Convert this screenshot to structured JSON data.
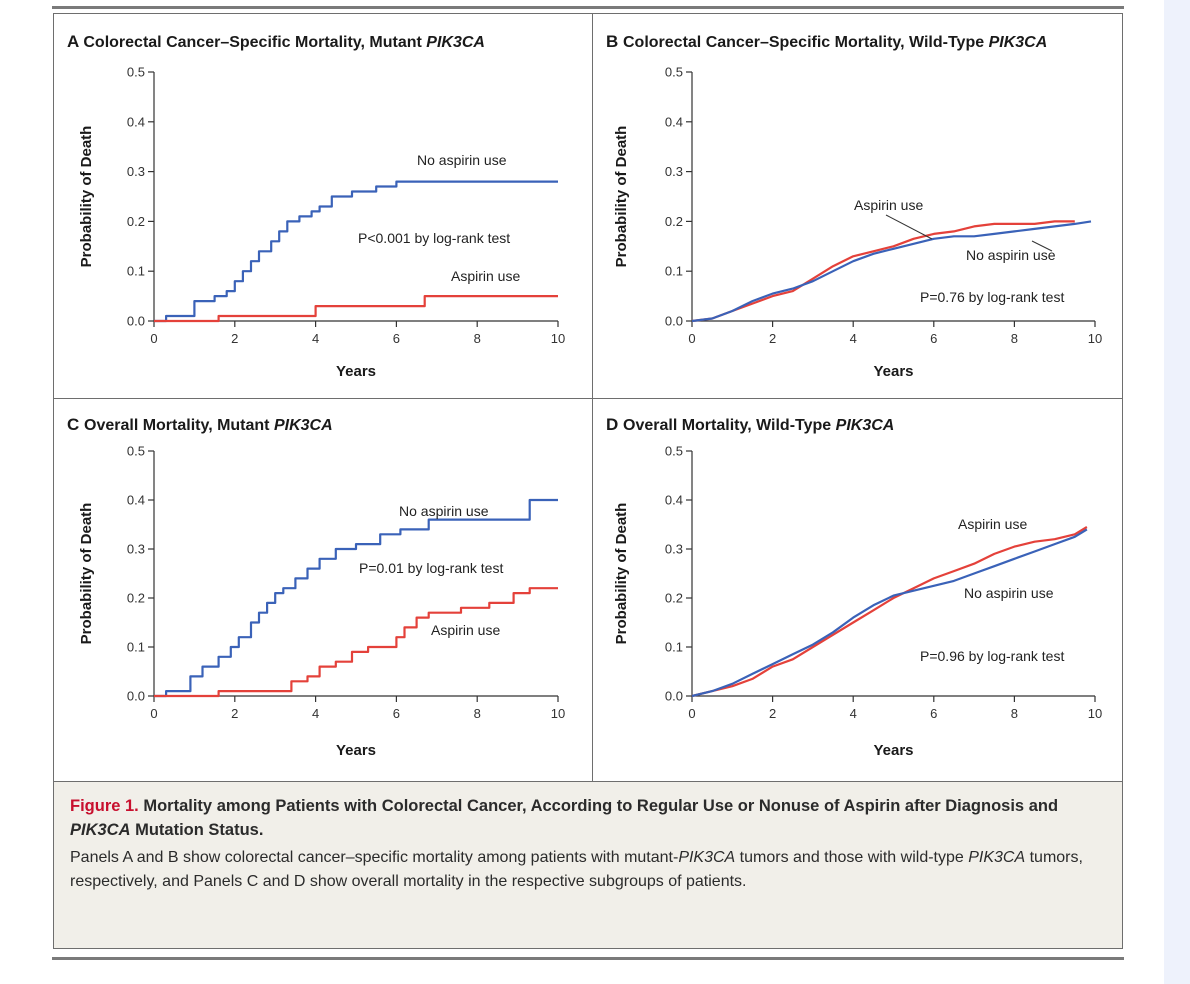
{
  "chart_data": [
    {
      "panel": "A",
      "type": "line",
      "title": "Colorectal Cancer–Specific Mortality, Mutant ",
      "title_italic": "PIK3CA",
      "xlabel": "Years",
      "ylabel": "Probability of Death",
      "xlim": [
        0,
        10
      ],
      "ylim": [
        0,
        0.5
      ],
      "xticks": [
        "0",
        "2",
        "4",
        "6",
        "8",
        "10"
      ],
      "yticks": [
        "0.0",
        "0.1",
        "0.2",
        "0.3",
        "0.4",
        "0.5"
      ],
      "pvalue": "P<0.001 by log-rank test",
      "series": [
        {
          "name": "No aspirin use",
          "color": "#3a62b8",
          "x": [
            0,
            0.3,
            0.3,
            1.0,
            1.0,
            1.5,
            1.5,
            1.8,
            1.8,
            2.0,
            2.0,
            2.2,
            2.2,
            2.4,
            2.4,
            2.6,
            2.6,
            2.9,
            2.9,
            3.1,
            3.1,
            3.3,
            3.3,
            3.6,
            3.6,
            3.9,
            3.9,
            4.1,
            4.1,
            4.4,
            4.4,
            4.9,
            4.9,
            5.5,
            5.5,
            6.0,
            6.0,
            10.0
          ],
          "values": [
            0.0,
            0.0,
            0.01,
            0.01,
            0.04,
            0.04,
            0.05,
            0.05,
            0.06,
            0.06,
            0.08,
            0.08,
            0.1,
            0.1,
            0.12,
            0.12,
            0.14,
            0.14,
            0.16,
            0.16,
            0.18,
            0.18,
            0.2,
            0.2,
            0.21,
            0.21,
            0.22,
            0.22,
            0.23,
            0.23,
            0.25,
            0.25,
            0.26,
            0.26,
            0.27,
            0.27,
            0.28,
            0.28
          ]
        },
        {
          "name": "Aspirin use",
          "color": "#e4413a",
          "x": [
            0,
            1.6,
            1.6,
            4.0,
            4.0,
            6.7,
            6.7,
            10.0
          ],
          "values": [
            0.0,
            0.0,
            0.01,
            0.01,
            0.03,
            0.03,
            0.05,
            0.05
          ]
        }
      ]
    },
    {
      "panel": "B",
      "type": "line",
      "title": "Colorectal Cancer–Specific Mortality, Wild-Type ",
      "title_italic": "PIK3CA",
      "xlabel": "Years",
      "ylabel": "Probability of Death",
      "xlim": [
        0,
        10
      ],
      "ylim": [
        0,
        0.5
      ],
      "xticks": [
        "0",
        "2",
        "4",
        "6",
        "8",
        "10"
      ],
      "yticks": [
        "0.0",
        "0.1",
        "0.2",
        "0.3",
        "0.4",
        "0.5"
      ],
      "pvalue": "P=0.76 by log-rank test",
      "series": [
        {
          "name": "Aspirin use",
          "color": "#e4413a",
          "x": [
            0,
            0.5,
            1.0,
            1.5,
            2.0,
            2.5,
            3.0,
            3.5,
            4.0,
            4.5,
            5.0,
            5.5,
            6.0,
            6.5,
            7.0,
            7.5,
            8.0,
            8.5,
            9.0,
            9.5
          ],
          "values": [
            0.0,
            0.005,
            0.02,
            0.035,
            0.05,
            0.06,
            0.085,
            0.11,
            0.13,
            0.14,
            0.15,
            0.165,
            0.175,
            0.18,
            0.19,
            0.195,
            0.195,
            0.195,
            0.2,
            0.2
          ]
        },
        {
          "name": "No aspirin use",
          "color": "#3a62b8",
          "x": [
            0,
            0.5,
            1.0,
            1.5,
            2.0,
            2.5,
            3.0,
            3.5,
            4.0,
            4.5,
            5.0,
            5.5,
            6.0,
            6.5,
            7.0,
            7.5,
            8.0,
            8.5,
            9.0,
            9.5,
            9.9
          ],
          "values": [
            0.0,
            0.005,
            0.02,
            0.04,
            0.055,
            0.065,
            0.08,
            0.1,
            0.12,
            0.135,
            0.145,
            0.155,
            0.165,
            0.17,
            0.17,
            0.175,
            0.18,
            0.185,
            0.19,
            0.195,
            0.2
          ]
        }
      ]
    },
    {
      "panel": "C",
      "type": "line",
      "title": "Overall Mortality, Mutant ",
      "title_italic": "PIK3CA",
      "xlabel": "Years",
      "ylabel": "Probability of Death",
      "xlim": [
        0,
        10
      ],
      "ylim": [
        0,
        0.5
      ],
      "xticks": [
        "0",
        "2",
        "4",
        "6",
        "8",
        "10"
      ],
      "yticks": [
        "0.0",
        "0.1",
        "0.2",
        "0.3",
        "0.4",
        "0.5"
      ],
      "pvalue": "P=0.01 by log-rank test",
      "series": [
        {
          "name": "No aspirin use",
          "color": "#3a62b8",
          "x": [
            0,
            0.3,
            0.3,
            0.9,
            0.9,
            1.2,
            1.2,
            1.6,
            1.6,
            1.9,
            1.9,
            2.1,
            2.1,
            2.4,
            2.4,
            2.6,
            2.6,
            2.8,
            2.8,
            3.0,
            3.0,
            3.2,
            3.2,
            3.5,
            3.5,
            3.8,
            3.8,
            4.1,
            4.1,
            4.5,
            4.5,
            5.0,
            5.0,
            5.6,
            5.6,
            6.1,
            6.1,
            6.8,
            6.8,
            9.3,
            9.3,
            9.5,
            9.5,
            10.0
          ],
          "values": [
            0.0,
            0.0,
            0.01,
            0.01,
            0.04,
            0.04,
            0.06,
            0.06,
            0.08,
            0.08,
            0.1,
            0.1,
            0.12,
            0.12,
            0.15,
            0.15,
            0.17,
            0.17,
            0.19,
            0.19,
            0.21,
            0.21,
            0.22,
            0.22,
            0.24,
            0.24,
            0.26,
            0.26,
            0.28,
            0.28,
            0.3,
            0.3,
            0.31,
            0.31,
            0.33,
            0.33,
            0.34,
            0.34,
            0.36,
            0.36,
            0.4,
            0.4,
            0.4,
            0.4
          ]
        },
        {
          "name": "Aspirin use",
          "color": "#e4413a",
          "x": [
            0,
            1.6,
            1.6,
            3.4,
            3.4,
            3.8,
            3.8,
            4.1,
            4.1,
            4.5,
            4.5,
            4.9,
            4.9,
            5.3,
            5.3,
            6.0,
            6.0,
            6.2,
            6.2,
            6.5,
            6.5,
            6.8,
            6.8,
            7.6,
            7.6,
            8.3,
            8.3,
            8.9,
            8.9,
            9.3,
            9.3,
            10.0
          ],
          "values": [
            0.0,
            0.0,
            0.01,
            0.01,
            0.03,
            0.03,
            0.04,
            0.04,
            0.06,
            0.06,
            0.07,
            0.07,
            0.09,
            0.09,
            0.1,
            0.1,
            0.12,
            0.12,
            0.14,
            0.14,
            0.16,
            0.16,
            0.17,
            0.17,
            0.18,
            0.18,
            0.19,
            0.19,
            0.21,
            0.21,
            0.22,
            0.22
          ]
        }
      ]
    },
    {
      "panel": "D",
      "type": "line",
      "title": "Overall Mortality, Wild-Type ",
      "title_italic": "PIK3CA",
      "xlabel": "Years",
      "ylabel": "Probability of Death",
      "xlim": [
        0,
        10
      ],
      "ylim": [
        0,
        0.5
      ],
      "xticks": [
        "0",
        "2",
        "4",
        "6",
        "8",
        "10"
      ],
      "yticks": [
        "0.0",
        "0.1",
        "0.2",
        "0.3",
        "0.4",
        "0.5"
      ],
      "pvalue": "P=0.96 by log-rank test",
      "series": [
        {
          "name": "Aspirin use",
          "color": "#e4413a",
          "x": [
            0,
            0.5,
            1.0,
            1.5,
            2.0,
            2.5,
            3.0,
            3.5,
            4.0,
            4.5,
            5.0,
            5.5,
            6.0,
            6.5,
            7.0,
            7.5,
            8.0,
            8.5,
            9.0,
            9.5,
            9.8
          ],
          "values": [
            0.0,
            0.01,
            0.02,
            0.035,
            0.06,
            0.075,
            0.1,
            0.125,
            0.15,
            0.175,
            0.2,
            0.22,
            0.24,
            0.255,
            0.27,
            0.29,
            0.305,
            0.315,
            0.32,
            0.33,
            0.345
          ]
        },
        {
          "name": "No aspirin use",
          "color": "#3a62b8",
          "x": [
            0,
            0.5,
            1.0,
            1.5,
            2.0,
            2.5,
            3.0,
            3.5,
            4.0,
            4.5,
            5.0,
            5.5,
            6.0,
            6.5,
            7.0,
            7.5,
            8.0,
            8.5,
            9.0,
            9.5,
            9.8
          ],
          "values": [
            0.0,
            0.01,
            0.025,
            0.045,
            0.065,
            0.085,
            0.105,
            0.13,
            0.16,
            0.185,
            0.205,
            0.215,
            0.225,
            0.235,
            0.25,
            0.265,
            0.28,
            0.295,
            0.31,
            0.325,
            0.34
          ]
        }
      ]
    }
  ],
  "caption": {
    "label": "Figure 1.",
    "title": " Mortality among Patients with Colorectal Cancer, According to Regular Use or Nonuse of Aspirin after Diagnosis and ",
    "title_italic": "PIK3CA",
    "title_end": " Mutation Status.",
    "body_1": "Panels A and B show colorectal cancer–specific mortality among patients with mutant-",
    "body_2_italic": "PIK3CA",
    "body_3": " tumors and those with wild-type ",
    "body_4_italic": "PIK3CA",
    "body_5": " tumors, respectively, and Panels C and D show overall mortality in the respective subgroups of patients."
  }
}
